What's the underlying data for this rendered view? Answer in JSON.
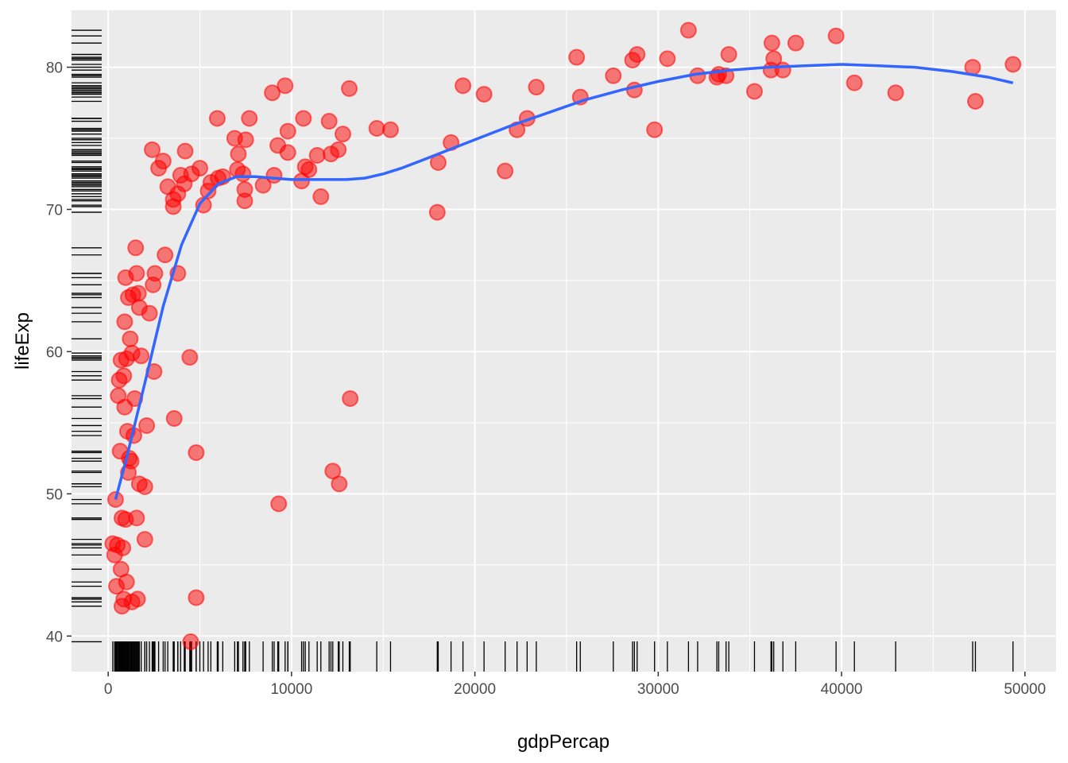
{
  "chart_data": {
    "type": "scatter",
    "xlabel": "gdpPercap",
    "ylabel": "lifeExp",
    "xlim": [
      -2000,
      51700
    ],
    "ylim": [
      37.5,
      84.0
    ],
    "x_ticks": [
      0,
      10000,
      20000,
      30000,
      40000,
      50000
    ],
    "x_tick_labels": [
      "0",
      "10000",
      "20000",
      "30000",
      "40000",
      "50000"
    ],
    "y_ticks": [
      40,
      50,
      60,
      70,
      80
    ],
    "y_tick_labels": [
      "40",
      "50",
      "60",
      "70",
      "80"
    ],
    "grid": true,
    "colors": {
      "panel": "#ebebeb",
      "grid": "#ffffff",
      "points": "#ff0000",
      "smooth": "#3366ff",
      "rug": "#000000"
    },
    "points": [
      {
        "x": 250,
        "y": 46.5
      },
      {
        "x": 350,
        "y": 45.7
      },
      {
        "x": 400,
        "y": 49.6
      },
      {
        "x": 450,
        "y": 43.5
      },
      {
        "x": 500,
        "y": 46.4
      },
      {
        "x": 550,
        "y": 56.9
      },
      {
        "x": 600,
        "y": 58.0
      },
      {
        "x": 650,
        "y": 53.0
      },
      {
        "x": 700,
        "y": 59.4
      },
      {
        "x": 700,
        "y": 44.7
      },
      {
        "x": 750,
        "y": 42.1
      },
      {
        "x": 750,
        "y": 48.3
      },
      {
        "x": 800,
        "y": 46.2
      },
      {
        "x": 850,
        "y": 58.3
      },
      {
        "x": 850,
        "y": 42.6
      },
      {
        "x": 900,
        "y": 56.1
      },
      {
        "x": 900,
        "y": 62.1
      },
      {
        "x": 950,
        "y": 48.2
      },
      {
        "x": 950,
        "y": 65.2
      },
      {
        "x": 1000,
        "y": 59.5
      },
      {
        "x": 1000,
        "y": 43.8
      },
      {
        "x": 1050,
        "y": 54.4
      },
      {
        "x": 1100,
        "y": 63.8
      },
      {
        "x": 1100,
        "y": 51.5
      },
      {
        "x": 1150,
        "y": 52.5
      },
      {
        "x": 1200,
        "y": 60.9
      },
      {
        "x": 1250,
        "y": 52.3
      },
      {
        "x": 1300,
        "y": 59.9
      },
      {
        "x": 1300,
        "y": 42.4
      },
      {
        "x": 1350,
        "y": 64.0
      },
      {
        "x": 1400,
        "y": 54.1
      },
      {
        "x": 1450,
        "y": 56.7
      },
      {
        "x": 1500,
        "y": 67.3
      },
      {
        "x": 1550,
        "y": 65.5
      },
      {
        "x": 1550,
        "y": 48.3
      },
      {
        "x": 1600,
        "y": 42.6
      },
      {
        "x": 1650,
        "y": 64.1
      },
      {
        "x": 1700,
        "y": 50.7
      },
      {
        "x": 1700,
        "y": 63.1
      },
      {
        "x": 1800,
        "y": 59.7
      },
      {
        "x": 2000,
        "y": 46.8
      },
      {
        "x": 2000,
        "y": 50.5
      },
      {
        "x": 2100,
        "y": 54.8
      },
      {
        "x": 2250,
        "y": 62.7
      },
      {
        "x": 2400,
        "y": 74.2
      },
      {
        "x": 2450,
        "y": 64.7
      },
      {
        "x": 2500,
        "y": 58.6
      },
      {
        "x": 2550,
        "y": 65.5
      },
      {
        "x": 2750,
        "y": 72.9
      },
      {
        "x": 3000,
        "y": 73.4
      },
      {
        "x": 3100,
        "y": 66.8
      },
      {
        "x": 3250,
        "y": 71.6
      },
      {
        "x": 3550,
        "y": 70.7
      },
      {
        "x": 3550,
        "y": 70.2
      },
      {
        "x": 3600,
        "y": 55.3
      },
      {
        "x": 3800,
        "y": 71.1
      },
      {
        "x": 3800,
        "y": 65.5
      },
      {
        "x": 3950,
        "y": 72.4
      },
      {
        "x": 4150,
        "y": 71.8
      },
      {
        "x": 4200,
        "y": 74.1
      },
      {
        "x": 4450,
        "y": 59.6
      },
      {
        "x": 4500,
        "y": 39.6
      },
      {
        "x": 4550,
        "y": 72.5
      },
      {
        "x": 4800,
        "y": 52.9
      },
      {
        "x": 4800,
        "y": 42.7
      },
      {
        "x": 5000,
        "y": 72.9
      },
      {
        "x": 5200,
        "y": 70.3
      },
      {
        "x": 5450,
        "y": 71.3
      },
      {
        "x": 5600,
        "y": 71.9
      },
      {
        "x": 5950,
        "y": 76.4
      },
      {
        "x": 6000,
        "y": 72.2
      },
      {
        "x": 6250,
        "y": 72.3
      },
      {
        "x": 6900,
        "y": 75.0
      },
      {
        "x": 7050,
        "y": 72.8
      },
      {
        "x": 7100,
        "y": 73.9
      },
      {
        "x": 7350,
        "y": 72.5
      },
      {
        "x": 7450,
        "y": 71.4
      },
      {
        "x": 7450,
        "y": 70.6
      },
      {
        "x": 7500,
        "y": 74.9
      },
      {
        "x": 7700,
        "y": 76.4
      },
      {
        "x": 8450,
        "y": 71.7
      },
      {
        "x": 8950,
        "y": 78.2
      },
      {
        "x": 9050,
        "y": 72.4
      },
      {
        "x": 9250,
        "y": 74.5
      },
      {
        "x": 9300,
        "y": 49.3
      },
      {
        "x": 9650,
        "y": 78.7
      },
      {
        "x": 9800,
        "y": 75.5
      },
      {
        "x": 9800,
        "y": 74.0
      },
      {
        "x": 10550,
        "y": 72.0
      },
      {
        "x": 10650,
        "y": 76.4
      },
      {
        "x": 10750,
        "y": 73.0
      },
      {
        "x": 10950,
        "y": 72.8
      },
      {
        "x": 11400,
        "y": 73.8
      },
      {
        "x": 11600,
        "y": 70.9
      },
      {
        "x": 12050,
        "y": 76.2
      },
      {
        "x": 12150,
        "y": 73.9
      },
      {
        "x": 12250,
        "y": 51.6
      },
      {
        "x": 12550,
        "y": 74.2
      },
      {
        "x": 12600,
        "y": 50.7
      },
      {
        "x": 12800,
        "y": 75.3
      },
      {
        "x": 13150,
        "y": 78.5
      },
      {
        "x": 13200,
        "y": 56.7
      },
      {
        "x": 14650,
        "y": 75.7
      },
      {
        "x": 15400,
        "y": 75.6
      },
      {
        "x": 17950,
        "y": 69.8
      },
      {
        "x": 18000,
        "y": 73.3
      },
      {
        "x": 18700,
        "y": 74.7
      },
      {
        "x": 19350,
        "y": 78.7
      },
      {
        "x": 20500,
        "y": 78.1
      },
      {
        "x": 21650,
        "y": 72.7
      },
      {
        "x": 22300,
        "y": 75.6
      },
      {
        "x": 22850,
        "y": 76.4
      },
      {
        "x": 23350,
        "y": 78.6
      },
      {
        "x": 25550,
        "y": 80.7
      },
      {
        "x": 25750,
        "y": 77.9
      },
      {
        "x": 27550,
        "y": 79.4
      },
      {
        "x": 28600,
        "y": 80.5
      },
      {
        "x": 28700,
        "y": 78.4
      },
      {
        "x": 28850,
        "y": 80.9
      },
      {
        "x": 29800,
        "y": 75.6
      },
      {
        "x": 30500,
        "y": 80.6
      },
      {
        "x": 31650,
        "y": 82.6
      },
      {
        "x": 32150,
        "y": 79.4
      },
      {
        "x": 33200,
        "y": 79.3
      },
      {
        "x": 33300,
        "y": 79.5
      },
      {
        "x": 33700,
        "y": 79.4
      },
      {
        "x": 33850,
        "y": 80.9
      },
      {
        "x": 35250,
        "y": 78.3
      },
      {
        "x": 36150,
        "y": 79.8
      },
      {
        "x": 36200,
        "y": 81.7
      },
      {
        "x": 36300,
        "y": 80.6
      },
      {
        "x": 36800,
        "y": 79.8
      },
      {
        "x": 37500,
        "y": 81.7
      },
      {
        "x": 39700,
        "y": 82.2
      },
      {
        "x": 40700,
        "y": 78.9
      },
      {
        "x": 42950,
        "y": 78.2
      },
      {
        "x": 47150,
        "y": 80.0
      },
      {
        "x": 47300,
        "y": 77.6
      },
      {
        "x": 49350,
        "y": 80.2
      }
    ],
    "smooth": {
      "x": [
        400,
        1000,
        2000,
        3000,
        4000,
        5000,
        6000,
        7000,
        8000,
        9000,
        10000,
        11000,
        12000,
        13000,
        14000,
        15000,
        16000,
        17000,
        18000,
        19000,
        20000,
        22000,
        24000,
        26000,
        28000,
        30000,
        32000,
        34000,
        36000,
        38000,
        40000,
        42000,
        44000,
        46000,
        48000,
        49350
      ],
      "y": [
        49.6,
        52.5,
        57.8,
        63.2,
        67.5,
        70.4,
        71.8,
        72.3,
        72.3,
        72.2,
        72.1,
        72.1,
        72.1,
        72.1,
        72.2,
        72.5,
        72.9,
        73.4,
        73.9,
        74.4,
        74.9,
        75.9,
        76.8,
        77.7,
        78.4,
        79.0,
        79.5,
        79.8,
        80.0,
        80.1,
        80.2,
        80.1,
        80.0,
        79.7,
        79.3,
        78.9
      ]
    }
  }
}
